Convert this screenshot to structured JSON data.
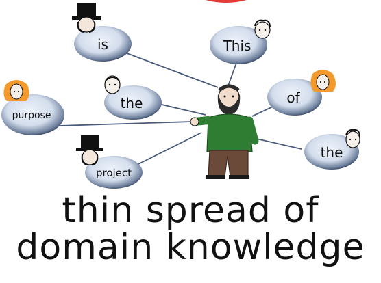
{
  "nodes": [
    {
      "id": "is",
      "label": "is",
      "avatar": "top-hat-man"
    },
    {
      "id": "this",
      "label": "This",
      "avatar": "curly-hair-man"
    },
    {
      "id": "the-left",
      "label": "the",
      "avatar": "bald-man"
    },
    {
      "id": "of",
      "label": "of",
      "avatar": "red-haired-woman"
    },
    {
      "id": "purpose",
      "label": "purpose",
      "avatar": "red-haired-woman"
    },
    {
      "id": "the-right",
      "label": "the",
      "avatar": "curly-hair-man"
    },
    {
      "id": "project",
      "label": "project",
      "avatar": "top-hat-man"
    }
  ],
  "center_figure": "bearded-man-green-sweater",
  "caption": {
    "line1": "thin spread of",
    "line2": "domain knowledge"
  },
  "colors": {
    "bubble_fill": "#d6dfec",
    "bubble_shadow": "#1f2f4a",
    "sweater": "#2e7d32",
    "pants": "#6b4a3a",
    "line": "#4a5a7a",
    "accent_top": "#e53935"
  }
}
